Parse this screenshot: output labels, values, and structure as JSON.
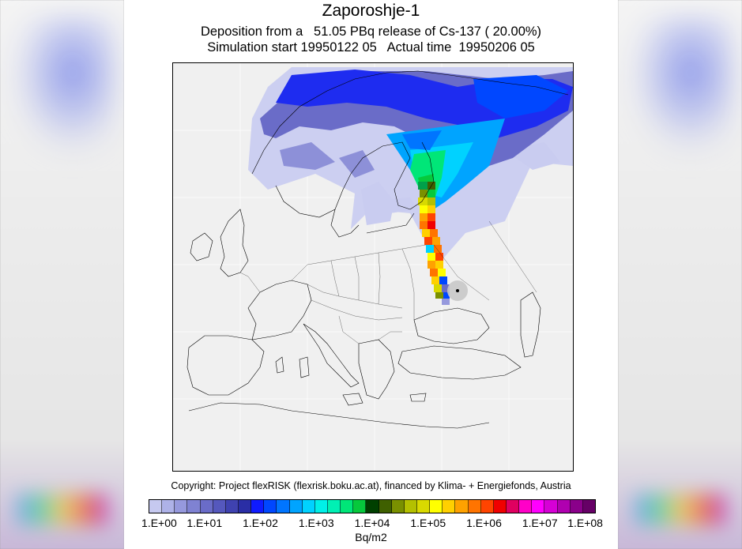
{
  "figure": {
    "title": "Zaporoshje-1",
    "subtitle_line1": "Deposition from a   51.05 PBq release of Cs-137 ( 20.00%)",
    "subtitle_line2": "Simulation start 19950122 05   Actual time  19950206 05",
    "copyright": "Copyright: Project flexRISK (flexrisk.boku.ac.at), financed by Klima- + Energiefonds, Austria"
  },
  "map": {
    "region": "Europe",
    "source_marker": "release-site",
    "plume_direction": "north"
  },
  "legend": {
    "unit": "Bq/m2",
    "tick_labels": [
      "1.E+00",
      "1.E+01",
      "1.E+02",
      "1.E+03",
      "1.E+04",
      "1.E+05",
      "1.E+06",
      "1.E+07",
      "1.E+08"
    ],
    "colors": [
      "#c6c9f0",
      "#aeb2e8",
      "#9699dd",
      "#7f82d2",
      "#6a6cc8",
      "#5558bd",
      "#3f42b0",
      "#2a2ea5",
      "#0f1bff",
      "#0047ff",
      "#0075ff",
      "#00a4ff",
      "#00d2ff",
      "#00f0e8",
      "#00f0b4",
      "#00e678",
      "#06c93c",
      "#004000",
      "#3f6000",
      "#7a9000",
      "#b4c000",
      "#d9d900",
      "#ffff00",
      "#ffd000",
      "#ffa200",
      "#ff7400",
      "#ff4400",
      "#f00000",
      "#e00060",
      "#ff00c8",
      "#ff00ff",
      "#d600d6",
      "#b000b0",
      "#8a008a",
      "#660066"
    ]
  }
}
